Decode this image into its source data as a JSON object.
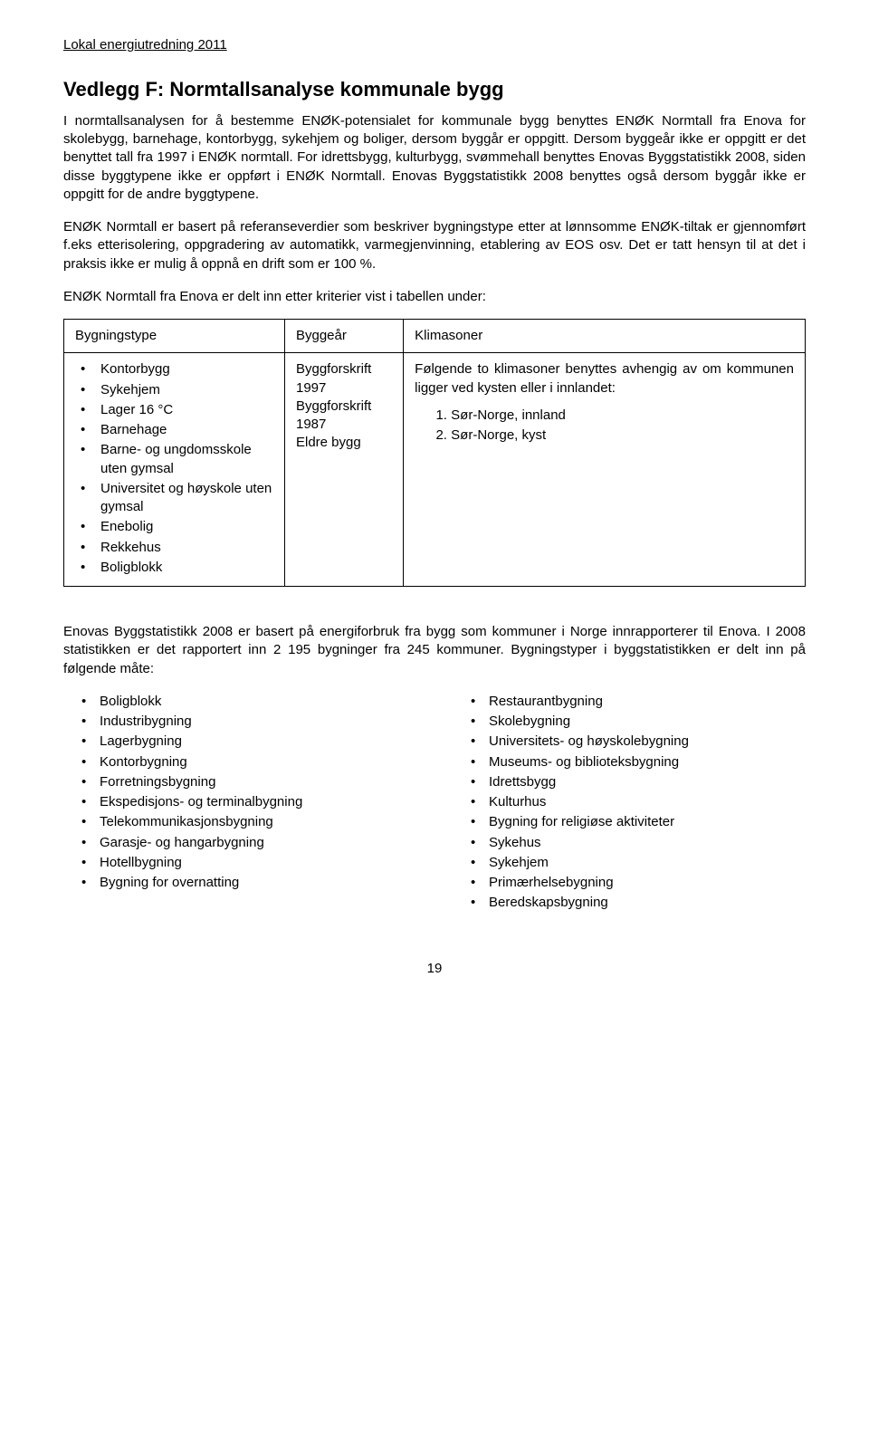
{
  "header": "Lokal energiutredning 2011",
  "title": "Vedlegg F: Normtallsanalyse kommunale bygg",
  "para1": "I normtallsanalysen for å bestemme ENØK-potensialet for kommunale bygg benyttes ENØK Normtall fra Enova for skolebygg, barnehage, kontorbygg, sykehjem og boliger, dersom byggår er oppgitt. Dersom byggeår ikke er oppgitt er det benyttet tall fra 1997 i ENØK normtall. For idrettsbygg, kulturbygg, svømmehall benyttes Enovas Byggstatistikk 2008, siden disse byggtypene ikke er oppført i ENØK Normtall. Enovas Byggstatistikk 2008 benyttes også dersom byggår ikke er oppgitt for de andre byggtypene.",
  "para2": "ENØK Normtall er basert på referanseverdier som beskriver bygningstype etter at lønnsomme ENØK-tiltak er gjennomført f.eks etterisolering, oppgradering av automatikk, varmegjenvinning, etablering av EOS osv. Det er tatt hensyn til at det i praksis ikke er mulig å oppnå en drift som er 100 %.",
  "para3": "ENØK Normtall fra Enova er delt inn etter kriterier vist i tabellen under:",
  "tableHeaders": {
    "c1": "Bygningstype",
    "c2": "Byggeår",
    "c3": "Klimasoner"
  },
  "bygningstypeList": [
    "Kontorbygg",
    "Sykehjem",
    "Lager 16 °C",
    "Barnehage",
    "Barne- og ungdomsskole uten gymsal",
    "Universitet og høyskole uten gymsal",
    "Enebolig",
    "Rekkehus",
    "Boligblokk"
  ],
  "byggearList": [
    "Byggforskrift 1997",
    "Byggforskrift 1987",
    "Eldre bygg"
  ],
  "klimasonerIntro": "Følgende to klimasoner benyttes avhengig av om kommunen ligger ved kysten eller i innlandet:",
  "klimasonerList": [
    "Sør-Norge, innland",
    "Sør-Norge, kyst"
  ],
  "para4": "Enovas Byggstatistikk 2008 er basert på energiforbruk fra bygg som kommuner i Norge innrapporterer til Enova. I 2008 statistikken er det rapportert inn 2 195 bygninger fra 245 kommuner. Bygningstyper i byggstatistikken er delt inn på følgende måte:",
  "bottomListLeft": [
    "Boligblokk",
    "Industribygning",
    "Lagerbygning",
    "Kontorbygning",
    "Forretningsbygning",
    "Ekspedisjons- og terminalbygning",
    "Telekommunikasjonsbygning",
    "Garasje- og hangarbygning",
    "Hotellbygning",
    "Bygning for overnatting"
  ],
  "bottomListRight": [
    "Restaurantbygning",
    "Skolebygning",
    "Universitets- og høyskolebygning",
    "Museums- og biblioteksbygning",
    "Idrettsbygg",
    "Kulturhus",
    "Bygning for religiøse aktiviteter",
    "Sykehus",
    "Sykehjem",
    "Primærhelsebygning",
    "Beredskapsbygning"
  ],
  "pageNumber": "19"
}
